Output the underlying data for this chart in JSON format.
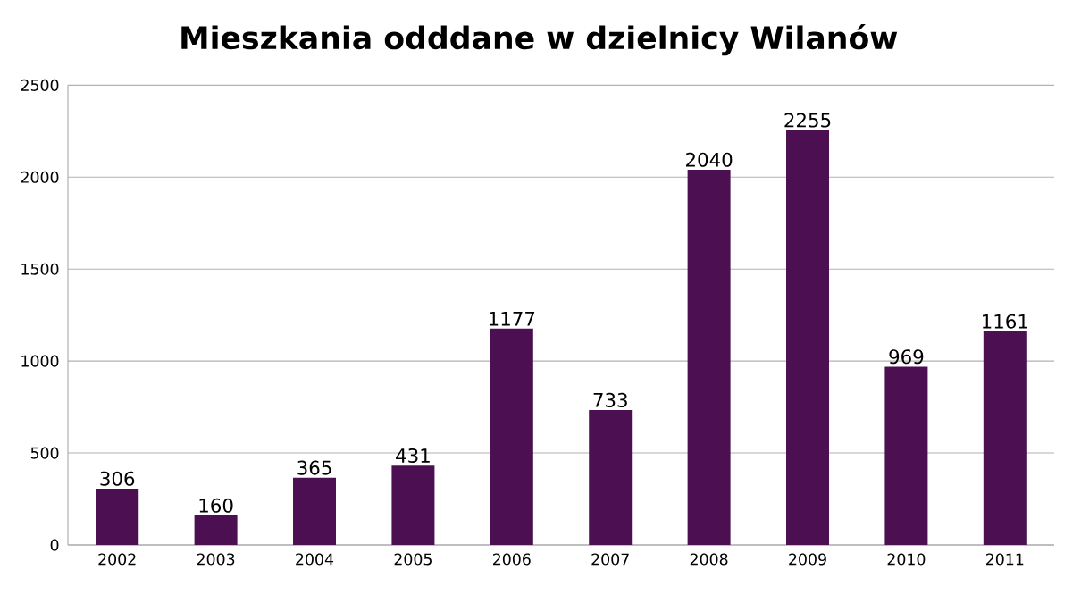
{
  "chart_data": {
    "type": "bar",
    "title": "Mieszkania odddane w dzielnicy Wilanów",
    "categories": [
      "2002",
      "2003",
      "2004",
      "2005",
      "2006",
      "2007",
      "2008",
      "2009",
      "2010",
      "2011"
    ],
    "values": [
      306,
      160,
      365,
      431,
      1177,
      733,
      2040,
      2255,
      969,
      1161
    ],
    "color": "#4b0f52",
    "ylim": [
      0,
      2500
    ],
    "yticks": [
      0,
      500,
      1000,
      1500,
      2000,
      2500
    ],
    "grid": "y",
    "data_labels": true
  }
}
